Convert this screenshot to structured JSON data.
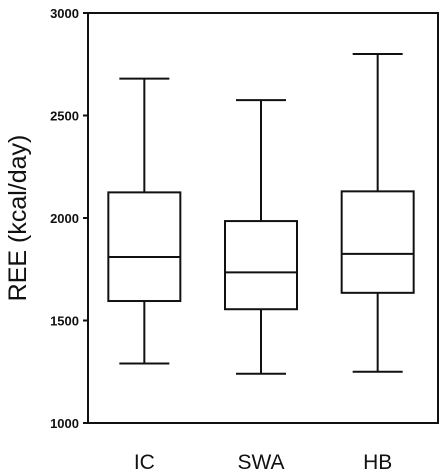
{
  "chart_data": {
    "type": "box",
    "ylabel": "REE (kcal/day)",
    "ylim": [
      1000,
      3000
    ],
    "yticks": [
      1000,
      1500,
      2000,
      2500,
      3000
    ],
    "grid": false,
    "categories": [
      "IC",
      "SWA",
      "HB"
    ],
    "boxes": [
      {
        "category": "IC",
        "min": 1290,
        "q1": 1595,
        "median": 1810,
        "q3": 2125,
        "max": 2680
      },
      {
        "category": "SWA",
        "min": 1240,
        "q1": 1555,
        "median": 1735,
        "q3": 1985,
        "max": 2575
      },
      {
        "category": "HB",
        "min": 1250,
        "q1": 1635,
        "median": 1825,
        "q3": 2130,
        "max": 2800
      }
    ],
    "colors": {
      "stroke": "#111111",
      "fill": "#ffffff"
    }
  }
}
